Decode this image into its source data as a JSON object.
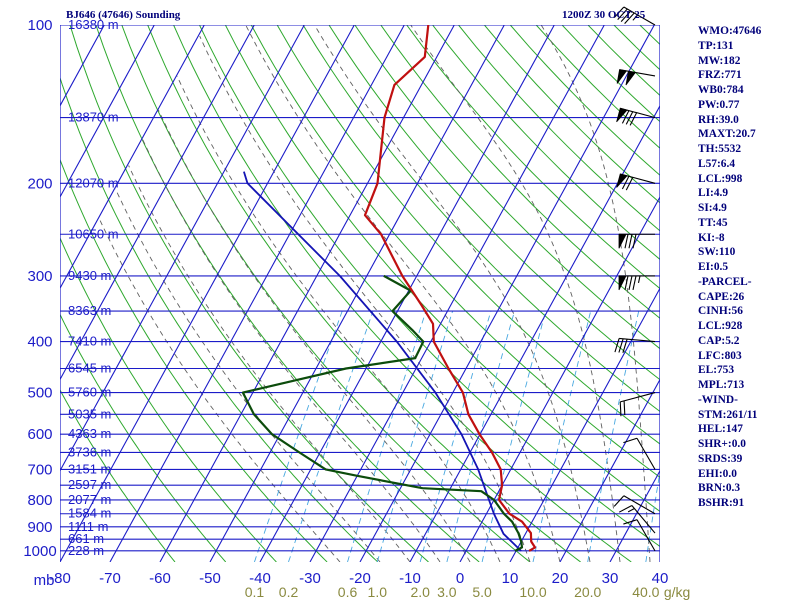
{
  "header": {
    "title_left": "BJ646 (47646) Sounding",
    "title_right": "1200Z 30 OCT 25"
  },
  "indices": [
    "WMO:47646",
    "TP:131",
    "MW:182",
    "FRZ:771",
    "WB0:784",
    "PW:0.77",
    "RH:39.0",
    "MAXT:20.7",
    "TH:5532",
    "L57:6.4",
    "LCL:998",
    "LI:4.9",
    "SI:4.9",
    "TT:45",
    "KI:-8",
    "SW:110",
    "EI:0.5",
    "-PARCEL-",
    "CAPE:26",
    "CINH:56",
    "LCL:928",
    "CAP:5.2",
    "LFC:803",
    "EL:753",
    "MPL:713",
    "-WIND-",
    "STM:261/11",
    "HEL:147",
    "SHR+:0.0",
    "SRDS:39",
    "EHI:0.0",
    "BRN:0.3",
    "BSHR:91"
  ],
  "colors": {
    "isobar": "#1c1cc8",
    "dry_adiabat": "#2ea82e",
    "moist_adiabat": "#606060",
    "mixing_ratio": "#48a8e0",
    "temperature": "#c01010",
    "dewpoint": "#0c4c0c",
    "parcel": "#1414b4",
    "barb": "#000000"
  },
  "chart_data": {
    "type": "skew-t log-p sounding",
    "title": "BJ646 (47646) Sounding",
    "pressure_unit_label": "mb",
    "pressure_levels": [
      100,
      200,
      300,
      400,
      500,
      600,
      700,
      800,
      900,
      1000
    ],
    "height_labels": [
      {
        "p": 100,
        "label": "16380 m"
      },
      {
        "p": 150,
        "label": "13870 m"
      },
      {
        "p": 200,
        "label": "12070 m"
      },
      {
        "p": 250,
        "label": "10650 m"
      },
      {
        "p": 300,
        "label": "9430 m"
      },
      {
        "p": 350,
        "label": "8363 m"
      },
      {
        "p": 400,
        "label": "7410 m"
      },
      {
        "p": 450,
        "label": "6545 m"
      },
      {
        "p": 500,
        "label": "5760 m"
      },
      {
        "p": 550,
        "label": "5035 m"
      },
      {
        "p": 600,
        "label": "4363 m"
      },
      {
        "p": 650,
        "label": "3736 m"
      },
      {
        "p": 700,
        "label": "3151 m"
      },
      {
        "p": 750,
        "label": "2597 m"
      },
      {
        "p": 800,
        "label": "2077 m"
      },
      {
        "p": 850,
        "label": "1584 m"
      },
      {
        "p": 900,
        "label": "1111 m"
      },
      {
        "p": 950,
        "label": "661 m"
      },
      {
        "p": 1000,
        "label": "228 m"
      }
    ],
    "temperature_ticks": [
      "-80",
      "-70",
      "-60",
      "-50",
      "-40",
      "-30",
      "-20",
      "-10",
      "0",
      "10",
      "20",
      "30",
      "40"
    ],
    "temperature_range": [
      -80,
      40
    ],
    "mixing_ratio_labels": [
      "0.1",
      "0.2",
      "0.6",
      "1.0",
      "2.0",
      "3.0",
      "5.0",
      "10.0",
      "20.0",
      "40.0"
    ],
    "mixing_ratio_unit": "g/kg",
    "temperature_profile": [
      {
        "p": 1000,
        "t": 12.6
      },
      {
        "p": 985,
        "t": 13.4
      },
      {
        "p": 960,
        "t": 12.0
      },
      {
        "p": 925,
        "t": 11.0
      },
      {
        "p": 880,
        "t": 8.0
      },
      {
        "p": 850,
        "t": 4.6
      },
      {
        "p": 800,
        "t": 1.0
      },
      {
        "p": 750,
        "t": 0.0
      },
      {
        "p": 700,
        "t": -2.0
      },
      {
        "p": 650,
        "t": -5.6
      },
      {
        "p": 600,
        "t": -10.1
      },
      {
        "p": 550,
        "t": -14.5
      },
      {
        "p": 500,
        "t": -18.0
      },
      {
        "p": 450,
        "t": -23.5
      },
      {
        "p": 400,
        "t": -29.4
      },
      {
        "p": 370,
        "t": -31.5
      },
      {
        "p": 340,
        "t": -36.0
      },
      {
        "p": 300,
        "t": -42.9
      },
      {
        "p": 250,
        "t": -51.7
      },
      {
        "p": 230,
        "t": -57.0
      },
      {
        "p": 200,
        "t": -58.0
      },
      {
        "p": 150,
        "t": -63.8
      },
      {
        "p": 130,
        "t": -65.4
      },
      {
        "p": 115,
        "t": -62.4
      },
      {
        "p": 100,
        "t": -65.2
      }
    ],
    "dewpoint_profile": [
      {
        "p": 1000,
        "t": 9.8
      },
      {
        "p": 985,
        "t": 10.8
      },
      {
        "p": 960,
        "t": 10.0
      },
      {
        "p": 925,
        "t": 8.5
      },
      {
        "p": 880,
        "t": 6.0
      },
      {
        "p": 850,
        "t": 3.5
      },
      {
        "p": 800,
        "t": 0.0
      },
      {
        "p": 770,
        "t": -3.5
      },
      {
        "p": 760,
        "t": -15.6
      },
      {
        "p": 720,
        "t": -30.0
      },
      {
        "p": 700,
        "t": -37.0
      },
      {
        "p": 650,
        "t": -44.1
      },
      {
        "p": 600,
        "t": -51.6
      },
      {
        "p": 550,
        "t": -57.4
      },
      {
        "p": 500,
        "t": -62.0
      },
      {
        "p": 450,
        "t": -44.0
      },
      {
        "p": 430,
        "t": -31.3
      },
      {
        "p": 400,
        "t": -31.5
      },
      {
        "p": 380,
        "t": -35.0
      },
      {
        "p": 350,
        "t": -41.0
      },
      {
        "p": 320,
        "t": -39.6
      },
      {
        "p": 300,
        "t": -46.6
      }
    ],
    "parcel_profile": [
      {
        "p": 1000,
        "t": 11.0
      },
      {
        "p": 928,
        "t": 5.6
      },
      {
        "p": 850,
        "t": 1.5
      },
      {
        "p": 800,
        "t": -1.0
      },
      {
        "p": 700,
        "t": -6.5
      },
      {
        "p": 600,
        "t": -13.7
      },
      {
        "p": 500,
        "t": -23.5
      },
      {
        "p": 400,
        "t": -36.8
      },
      {
        "p": 300,
        "t": -55.4
      },
      {
        "p": 200,
        "t": -84.0
      },
      {
        "p": 190,
        "t": -86.0
      }
    ],
    "wind_barbs": [
      {
        "p": 1000,
        "dir": 330,
        "kt": 10
      },
      {
        "p": 925,
        "dir": 320,
        "kt": 15
      },
      {
        "p": 850,
        "dir": 300,
        "kt": 10
      },
      {
        "p": 700,
        "dir": 330,
        "kt": 10
      },
      {
        "p": 500,
        "dir": 255,
        "kt": 20
      },
      {
        "p": 400,
        "dir": 275,
        "kt": 30
      },
      {
        "p": 300,
        "dir": 270,
        "kt": 85
      },
      {
        "p": 250,
        "dir": 270,
        "kt": 80
      },
      {
        "p": 200,
        "dir": 285,
        "kt": 70
      },
      {
        "p": 150,
        "dir": 285,
        "kt": 80
      },
      {
        "p": 125,
        "dir": 280,
        "kt": 100
      },
      {
        "p": 100,
        "dir": 300,
        "kt": 45
      }
    ]
  }
}
